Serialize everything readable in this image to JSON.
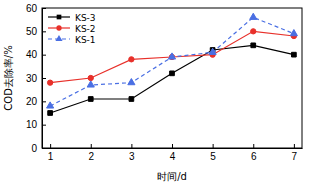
{
  "chart_data": {
    "type": "line",
    "x_label": "时间/d",
    "y_label": "COD去除率/%",
    "x": [
      1,
      2,
      3,
      4,
      5,
      6,
      7
    ],
    "series": [
      {
        "name": "KS-3",
        "color": "#000000",
        "marker": "square",
        "line_style": "solid",
        "values": [
          15,
          21,
          21,
          32,
          42,
          44,
          40
        ]
      },
      {
        "name": "KS-2",
        "color": "#e8302a",
        "marker": "circle",
        "line_style": "solid",
        "values": [
          28,
          30,
          38,
          39,
          40,
          50,
          48
        ]
      },
      {
        "name": "KS-1",
        "color": "#4a6fe3",
        "marker": "triangle",
        "line_style": "dashed",
        "values": [
          18,
          27,
          28,
          39,
          41,
          56,
          49
        ]
      }
    ],
    "xlim": [
      0.8,
      7.2
    ],
    "xticks": [
      1,
      2,
      3,
      4,
      5,
      6,
      7
    ],
    "ylim": [
      0,
      60
    ],
    "yticks": [
      0,
      10,
      20,
      30,
      40,
      50,
      60
    ],
    "legend": "upper-left"
  }
}
